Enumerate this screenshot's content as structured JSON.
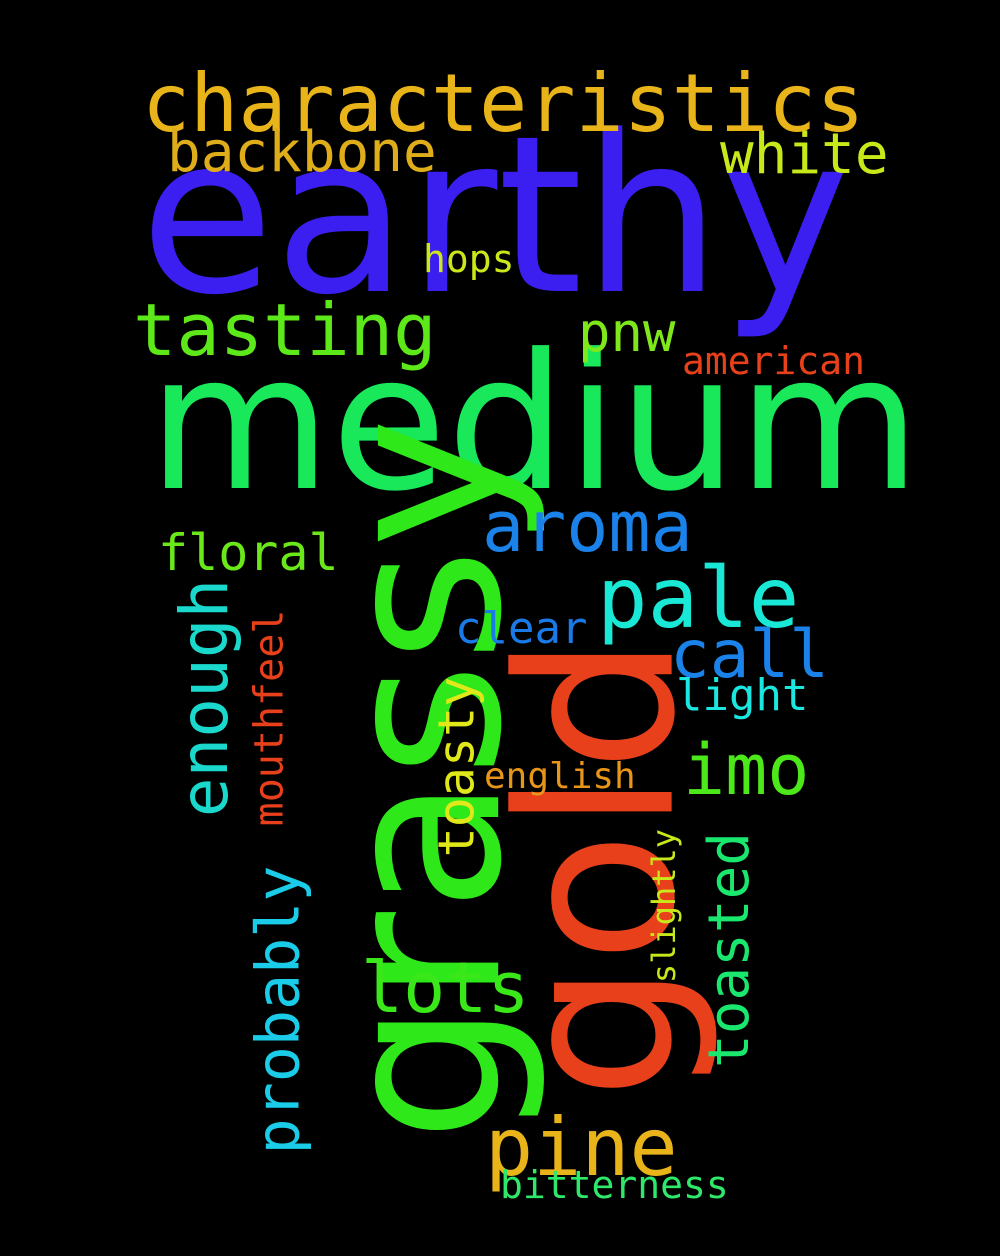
{
  "background": "#000000",
  "words": [
    {
      "text": "earthy",
      "color": "#3a1ff0",
      "rotated": false
    },
    {
      "text": "medium",
      "color": "#19e85a",
      "rotated": false
    },
    {
      "text": "grassy",
      "color": "#2ee81a",
      "rotated": true
    },
    {
      "text": "gold",
      "color": "#e8401a",
      "rotated": true
    },
    {
      "text": "characteristics",
      "color": "#e8b41a",
      "rotated": false
    },
    {
      "text": "backbone",
      "color": "#e0ad1a",
      "rotated": false
    },
    {
      "text": "white",
      "color": "#c8e81a",
      "rotated": false
    },
    {
      "text": "hops",
      "color": "#cde81a",
      "rotated": false
    },
    {
      "text": "tasting",
      "color": "#5de81a",
      "rotated": false
    },
    {
      "text": "pnw",
      "color": "#7fe81a",
      "rotated": false
    },
    {
      "text": "american",
      "color": "#e8401a",
      "rotated": false
    },
    {
      "text": "aroma",
      "color": "#1a82e8",
      "rotated": false
    },
    {
      "text": "floral",
      "color": "#6be81a",
      "rotated": false
    },
    {
      "text": "pale",
      "color": "#1ae8d6",
      "rotated": false
    },
    {
      "text": "enough",
      "color": "#1ad8cc",
      "rotated": true
    },
    {
      "text": "mouthfeel",
      "color": "#e8401a",
      "rotated": true
    },
    {
      "text": "clear",
      "color": "#1a7ae8",
      "rotated": false
    },
    {
      "text": "call",
      "color": "#1a82e8",
      "rotated": false
    },
    {
      "text": "light",
      "color": "#1ae8e0",
      "rotated": false
    },
    {
      "text": "toasty",
      "color": "#e0e81a",
      "rotated": true
    },
    {
      "text": "imo",
      "color": "#4de81a",
      "rotated": false
    },
    {
      "text": "english",
      "color": "#e8961a",
      "rotated": false
    },
    {
      "text": "toasted",
      "color": "#1ae86e",
      "rotated": true
    },
    {
      "text": "slightly",
      "color": "#c8e81a",
      "rotated": true
    },
    {
      "text": "probably",
      "color": "#1acce8",
      "rotated": true
    },
    {
      "text": "lots",
      "color": "#3ae81a",
      "rotated": false
    },
    {
      "text": "pine",
      "color": "#e8b41a",
      "rotated": false
    },
    {
      "text": "bitterness",
      "color": "#2ee86a",
      "rotated": false
    }
  ]
}
